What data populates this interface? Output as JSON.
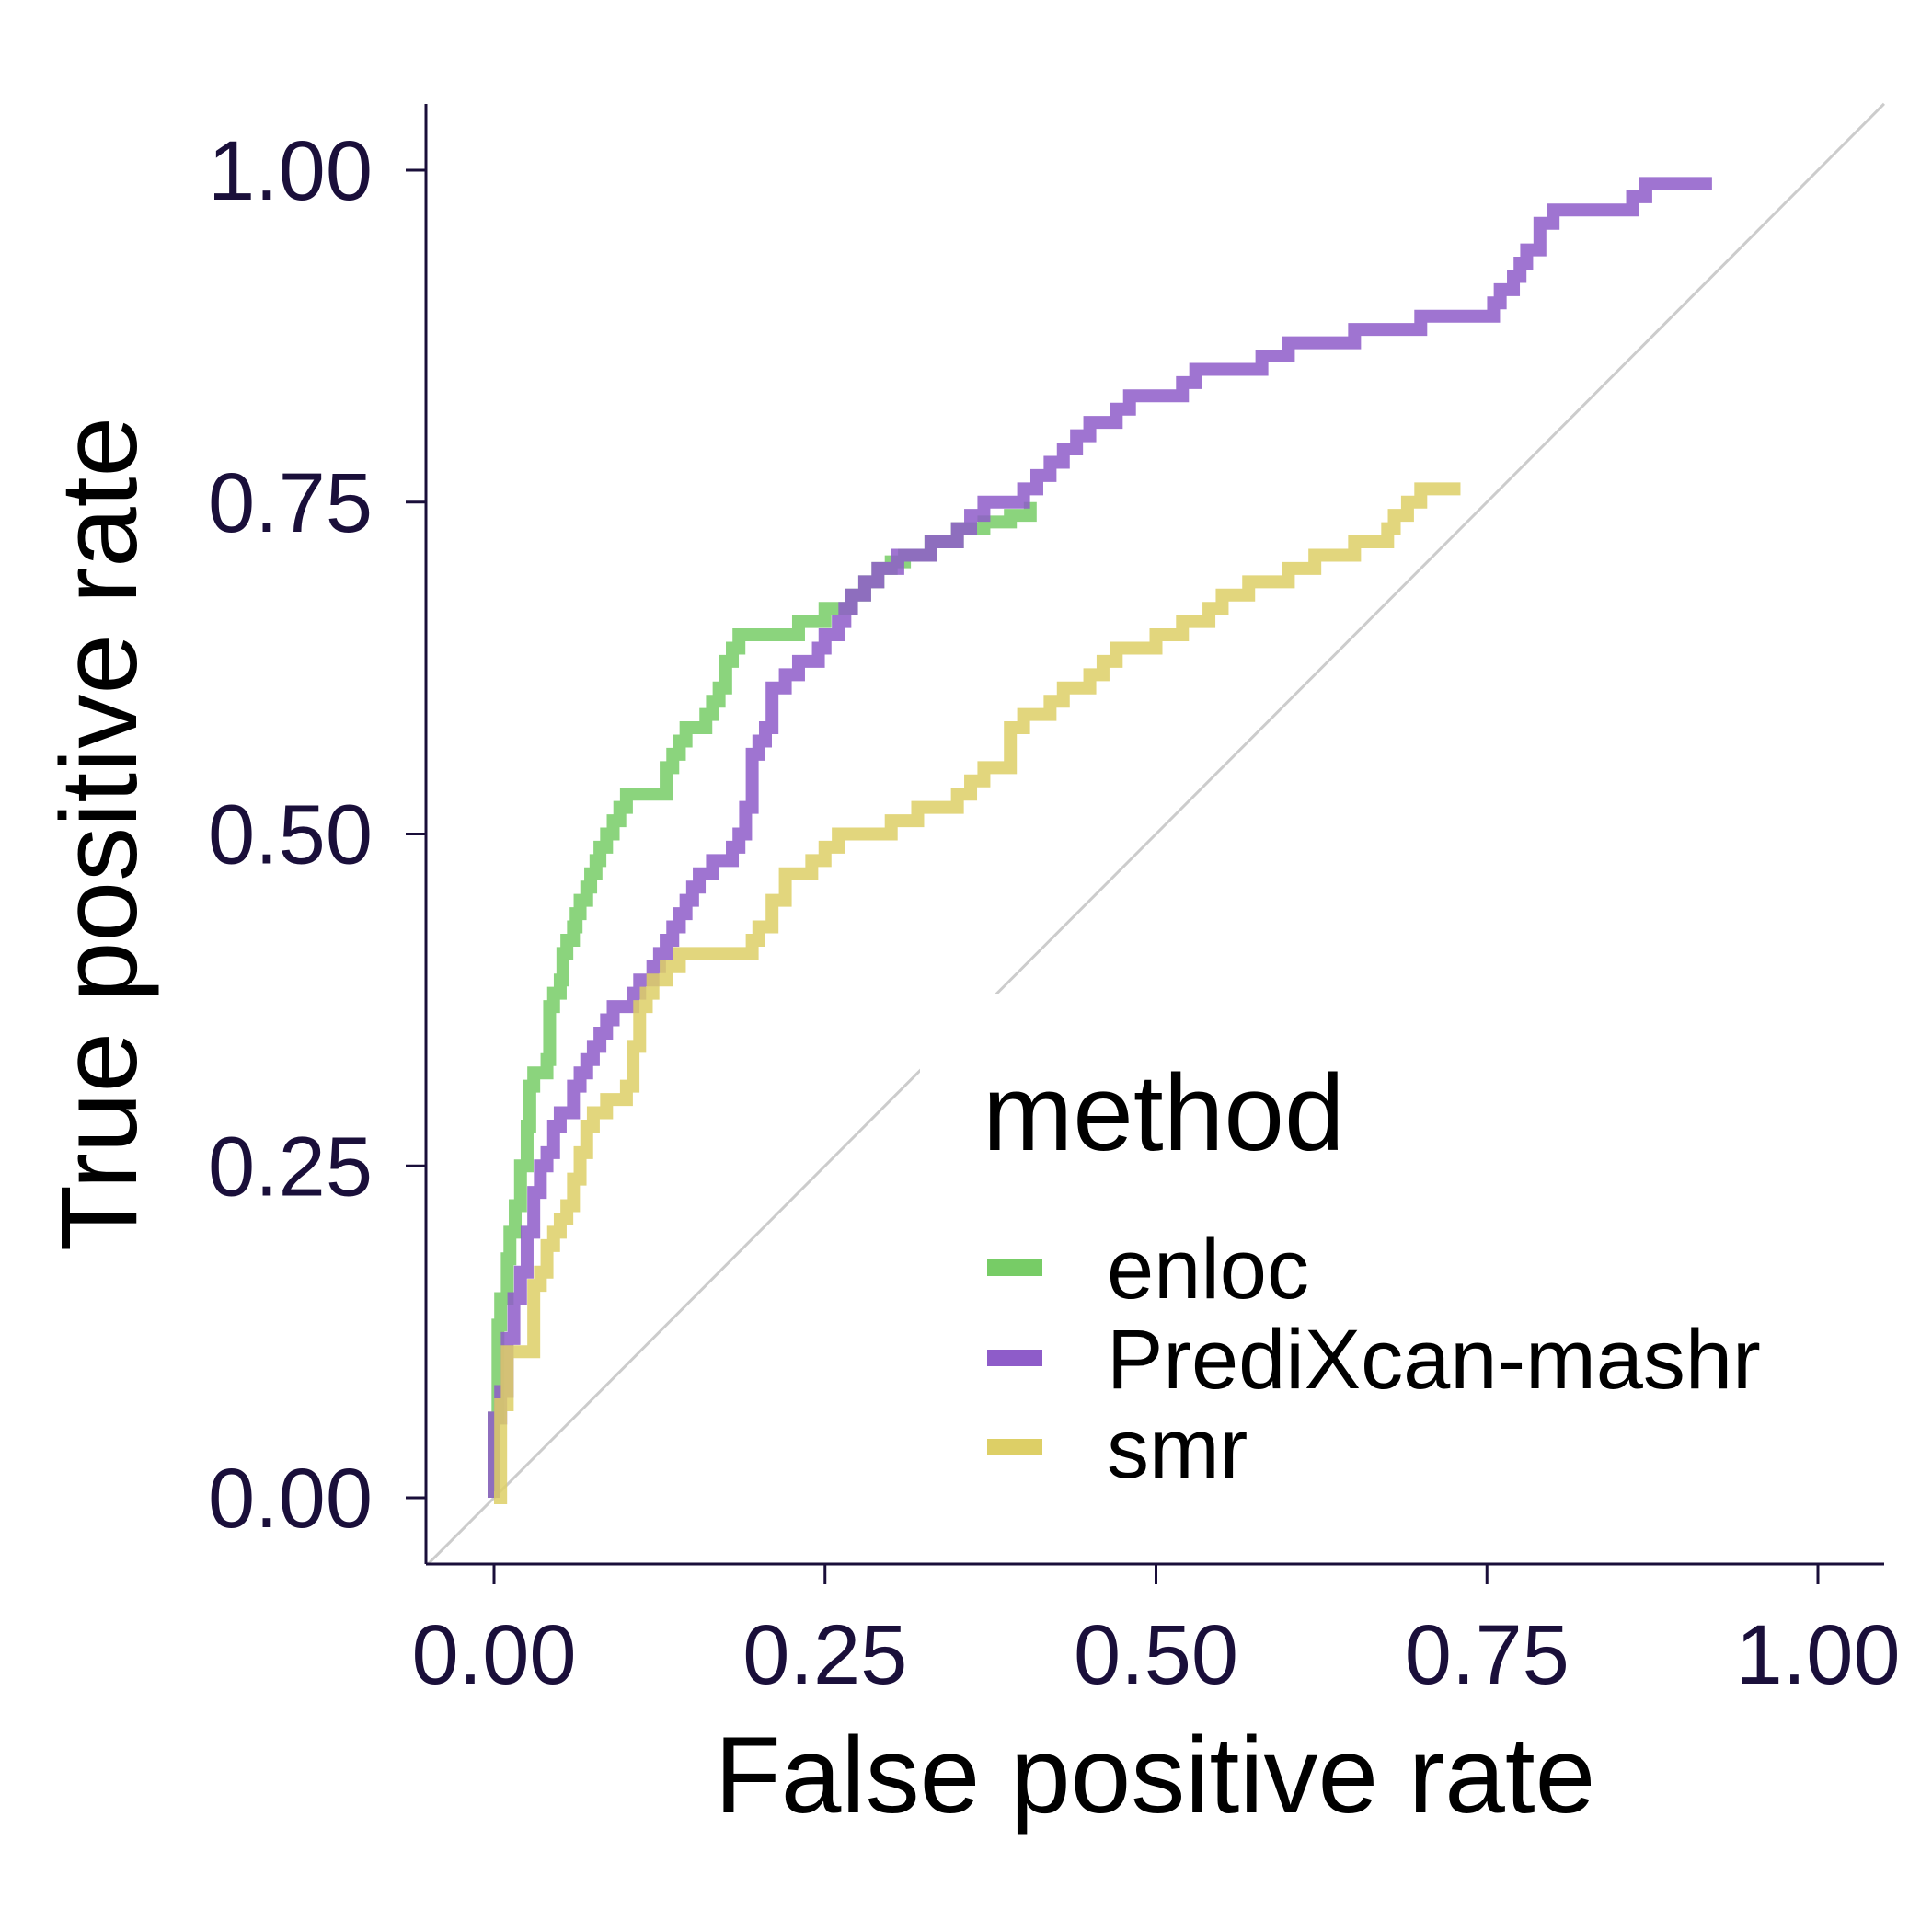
{
  "chart_data": {
    "type": "line",
    "title": "",
    "xlabel": "False positive rate",
    "ylabel": "True positive rate",
    "xlim": [
      -0.05,
      1.05
    ],
    "ylim": [
      -0.05,
      1.05
    ],
    "x_ticks": [
      "0.00",
      "0.25",
      "0.50",
      "0.75",
      "1.00"
    ],
    "y_ticks": [
      "0.00",
      "0.25",
      "0.50",
      "0.75",
      "1.00"
    ],
    "grid": false,
    "reference_line": {
      "type": "diagonal",
      "from": [
        -0.05,
        -0.05
      ],
      "to": [
        1.05,
        1.05
      ],
      "color": "#cccccc"
    },
    "legend": {
      "title": "method",
      "placement": "bottom-right",
      "entries": [
        {
          "label": "enloc",
          "color": "#77cc66"
        },
        {
          "label": "PrediXcan-mashr",
          "color": "#8e5cc9"
        },
        {
          "label": "smr",
          "color": "#ddcf66"
        }
      ]
    },
    "series": [
      {
        "name": "enloc",
        "color": "#77cc66",
        "x": [
          0.0,
          0.0,
          0.003,
          0.005,
          0.01,
          0.012,
          0.016,
          0.02,
          0.025,
          0.027,
          0.03,
          0.04,
          0.042,
          0.045,
          0.05,
          0.052,
          0.055,
          0.06,
          0.062,
          0.065,
          0.07,
          0.073,
          0.077,
          0.08,
          0.085,
          0.09,
          0.095,
          0.1,
          0.105,
          0.11,
          0.13,
          0.135,
          0.14,
          0.145,
          0.15,
          0.16,
          0.165,
          0.17,
          0.175,
          0.18,
          0.185,
          0.19,
          0.2,
          0.23,
          0.25,
          0.27,
          0.28,
          0.29,
          0.3,
          0.31,
          0.33,
          0.35,
          0.37,
          0.39,
          0.405
        ],
        "y": [
          0.0,
          0.06,
          0.13,
          0.15,
          0.18,
          0.2,
          0.22,
          0.25,
          0.28,
          0.31,
          0.32,
          0.33,
          0.37,
          0.38,
          0.39,
          0.41,
          0.42,
          0.43,
          0.44,
          0.45,
          0.46,
          0.47,
          0.48,
          0.49,
          0.5,
          0.51,
          0.52,
          0.53,
          0.53,
          0.53,
          0.55,
          0.56,
          0.57,
          0.58,
          0.58,
          0.59,
          0.6,
          0.61,
          0.63,
          0.64,
          0.65,
          0.65,
          0.65,
          0.66,
          0.67,
          0.68,
          0.69,
          0.7,
          0.705,
          0.71,
          0.72,
          0.73,
          0.735,
          0.74,
          0.75
        ]
      },
      {
        "name": "PrediXcan-mashr",
        "color": "#8e5cc9",
        "x": [
          0.0,
          0.0,
          0.005,
          0.01,
          0.015,
          0.02,
          0.025,
          0.03,
          0.035,
          0.04,
          0.045,
          0.05,
          0.06,
          0.065,
          0.07,
          0.075,
          0.08,
          0.085,
          0.09,
          0.1,
          0.105,
          0.11,
          0.12,
          0.125,
          0.13,
          0.135,
          0.14,
          0.145,
          0.15,
          0.155,
          0.16,
          0.165,
          0.17,
          0.18,
          0.185,
          0.19,
          0.195,
          0.2,
          0.205,
          0.21,
          0.22,
          0.23,
          0.24,
          0.245,
          0.25,
          0.255,
          0.26,
          0.265,
          0.27,
          0.28,
          0.29,
          0.3,
          0.305,
          0.31,
          0.33,
          0.35,
          0.36,
          0.37,
          0.38,
          0.4,
          0.41,
          0.42,
          0.43,
          0.44,
          0.45,
          0.46,
          0.47,
          0.48,
          0.49,
          0.5,
          0.52,
          0.53,
          0.55,
          0.58,
          0.6,
          0.65,
          0.7,
          0.71,
          0.75,
          0.755,
          0.76,
          0.77,
          0.775,
          0.78,
          0.79,
          0.8,
          0.85,
          0.86,
          0.87,
          0.92
        ],
        "y": [
          0.0,
          0.06,
          0.08,
          0.12,
          0.15,
          0.17,
          0.2,
          0.23,
          0.25,
          0.26,
          0.28,
          0.29,
          0.31,
          0.32,
          0.33,
          0.34,
          0.35,
          0.36,
          0.37,
          0.37,
          0.38,
          0.39,
          0.4,
          0.41,
          0.42,
          0.43,
          0.44,
          0.45,
          0.46,
          0.47,
          0.47,
          0.48,
          0.48,
          0.49,
          0.5,
          0.52,
          0.56,
          0.57,
          0.58,
          0.61,
          0.62,
          0.63,
          0.63,
          0.64,
          0.65,
          0.65,
          0.66,
          0.67,
          0.68,
          0.69,
          0.7,
          0.7,
          0.71,
          0.71,
          0.72,
          0.73,
          0.74,
          0.75,
          0.75,
          0.76,
          0.77,
          0.78,
          0.79,
          0.8,
          0.81,
          0.81,
          0.82,
          0.83,
          0.83,
          0.83,
          0.84,
          0.85,
          0.85,
          0.86,
          0.87,
          0.88,
          0.89,
          0.89,
          0.89,
          0.9,
          0.91,
          0.92,
          0.93,
          0.94,
          0.96,
          0.97,
          0.97,
          0.98,
          0.99,
          0.99
        ]
      },
      {
        "name": "smr",
        "color": "#ddcf66",
        "x": [
          0.0,
          0.005,
          0.01,
          0.015,
          0.02,
          0.03,
          0.035,
          0.04,
          0.045,
          0.05,
          0.055,
          0.06,
          0.065,
          0.07,
          0.075,
          0.08,
          0.085,
          0.09,
          0.095,
          0.1,
          0.105,
          0.11,
          0.115,
          0.12,
          0.13,
          0.14,
          0.15,
          0.19,
          0.195,
          0.2,
          0.21,
          0.22,
          0.23,
          0.24,
          0.25,
          0.26,
          0.28,
          0.3,
          0.31,
          0.32,
          0.33,
          0.35,
          0.36,
          0.37,
          0.38,
          0.39,
          0.4,
          0.41,
          0.42,
          0.43,
          0.44,
          0.45,
          0.46,
          0.47,
          0.5,
          0.52,
          0.53,
          0.54,
          0.55,
          0.57,
          0.6,
          0.62,
          0.65,
          0.67,
          0.675,
          0.68,
          0.69,
          0.7,
          0.72,
          0.73
        ],
        "y": [
          0.0,
          0.07,
          0.11,
          0.11,
          0.11,
          0.16,
          0.17,
          0.19,
          0.2,
          0.21,
          0.22,
          0.24,
          0.26,
          0.28,
          0.29,
          0.29,
          0.3,
          0.3,
          0.3,
          0.31,
          0.34,
          0.37,
          0.38,
          0.39,
          0.4,
          0.41,
          0.41,
          0.41,
          0.42,
          0.43,
          0.45,
          0.47,
          0.47,
          0.48,
          0.49,
          0.5,
          0.5,
          0.51,
          0.51,
          0.52,
          0.52,
          0.53,
          0.54,
          0.55,
          0.55,
          0.58,
          0.59,
          0.59,
          0.6,
          0.61,
          0.61,
          0.62,
          0.63,
          0.64,
          0.65,
          0.66,
          0.66,
          0.67,
          0.68,
          0.69,
          0.7,
          0.71,
          0.72,
          0.72,
          0.73,
          0.74,
          0.75,
          0.76,
          0.76,
          0.76
        ]
      }
    ]
  }
}
